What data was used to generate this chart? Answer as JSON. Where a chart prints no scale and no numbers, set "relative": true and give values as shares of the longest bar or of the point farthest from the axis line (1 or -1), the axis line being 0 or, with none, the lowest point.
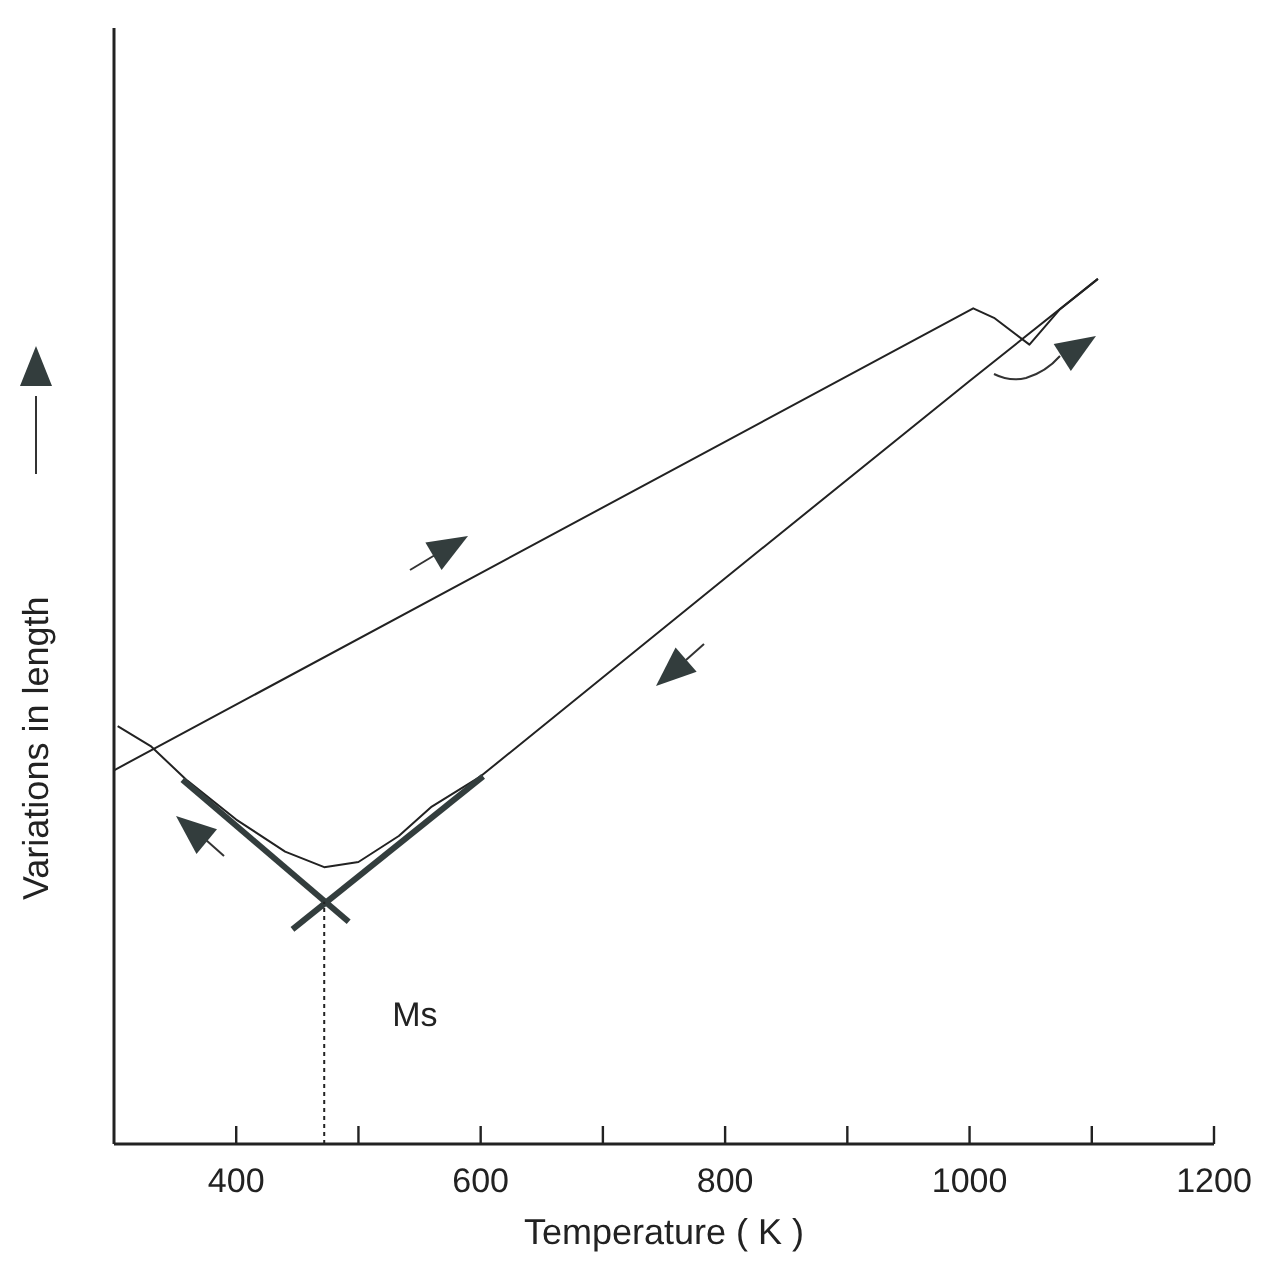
{
  "chart_data": {
    "type": "line",
    "relative": true,
    "xlabel": "Temperature ( K )",
    "ylabel": "Variations in length",
    "xlim": [
      300,
      1200
    ],
    "xticks": [
      400,
      {
        "value": 500,
        "label": null
      },
      600,
      {
        "value": 700,
        "label": null
      },
      800,
      {
        "value": 900,
        "label": null
      },
      1000,
      {
        "value": 1100,
        "label": null
      },
      1200
    ],
    "series": [
      {
        "color": "#222222",
        "x": [
          300,
          1003,
          1020,
          1049,
          1074,
          1105
        ],
        "values": [
          0.432,
          0.966,
          0.955,
          0.924,
          0.965,
          1.0
        ]
      },
      {
        "color": "#222222",
        "x": [
          303,
          330,
          360,
          400,
          440,
          472,
          500,
          533,
          560,
          600,
          800,
          1000,
          1105
        ],
        "values": [
          0.483,
          0.46,
          0.42,
          0.375,
          0.338,
          0.32,
          0.326,
          0.356,
          0.39,
          0.425,
          0.654,
          0.882,
          1.0
        ]
      },
      {
        "color": "#333d3d",
        "x": [
          356,
          492
        ],
        "values": [
          0.421,
          0.257
        ]
      },
      {
        "color": "#333d3d",
        "x": [
          446,
          602
        ],
        "values": [
          0.248,
          0.425
        ]
      },
      {
        "color": "#222222",
        "line_style": "dotted",
        "x": [
          472,
          472
        ],
        "values": [
          0,
          0.28
        ]
      }
    ],
    "annotations": [
      {
        "text": "Ms",
        "x": 472,
        "y": 0.15
      }
    ]
  }
}
